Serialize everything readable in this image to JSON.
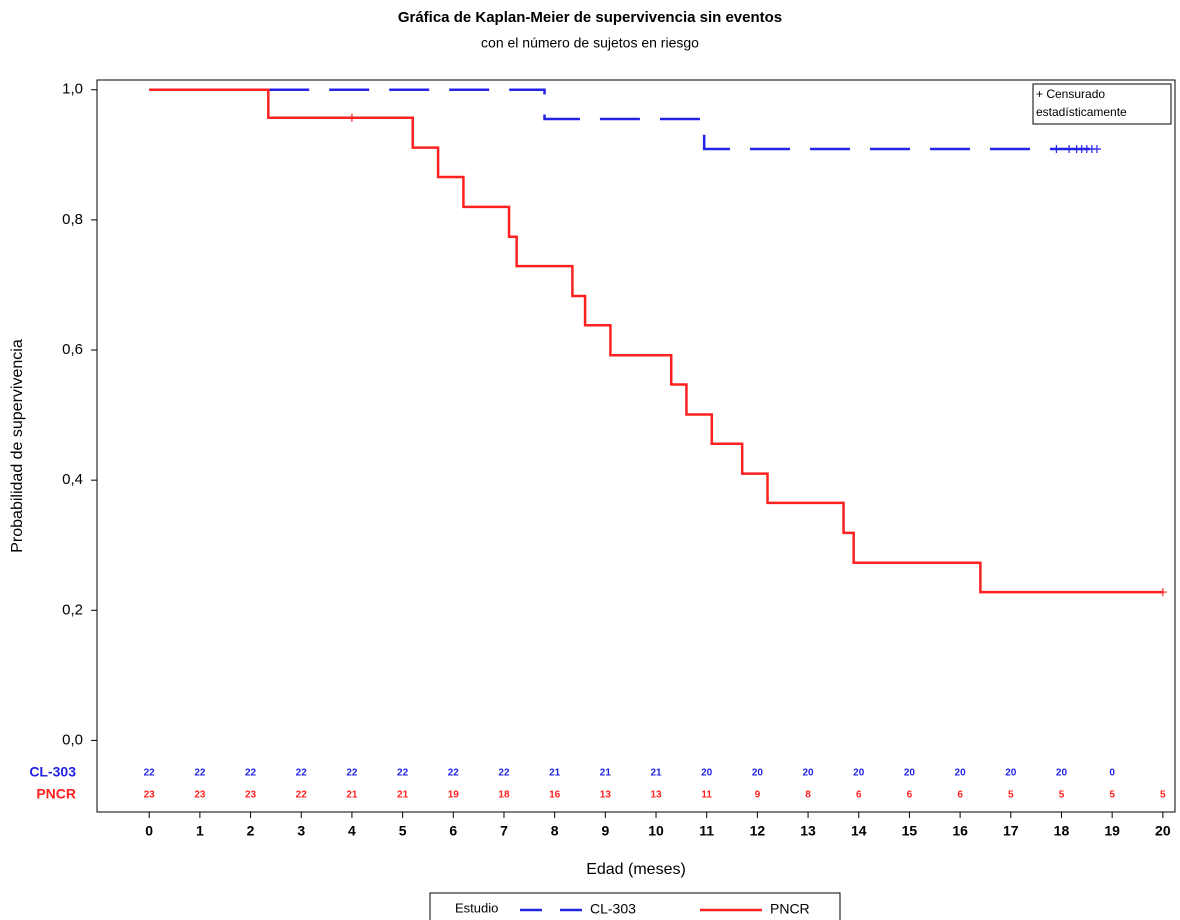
{
  "chart_data": {
    "type": "step",
    "title": "Gráfica de Kaplan-Meier de supervivencia sin eventos",
    "subtitle": "con el número de sujetos en riesgo",
    "x_label": "Edad (meses)",
    "y_label": "Probabilidad de supervivencia",
    "xlim": [
      -1.03,
      20.24
    ],
    "ylim": [
      -0.11,
      1.015
    ],
    "xticks": [
      0,
      1,
      2,
      3,
      4,
      5,
      6,
      7,
      8,
      9,
      10,
      11,
      12,
      13,
      14,
      15,
      16,
      17,
      18,
      19,
      20
    ],
    "yticks": [
      {
        "value": 0,
        "label": "0,0"
      },
      {
        "value": 0.2,
        "label": "0,2"
      },
      {
        "value": 0.4,
        "label": "0,4"
      },
      {
        "value": 0.6,
        "label": "0,6"
      },
      {
        "value": 0.8,
        "label": "0,8"
      },
      {
        "value": 1,
        "label": "1,0"
      }
    ],
    "legend_title": "Estudio",
    "censor_legend": [
      "+ Censurado",
      "estadísticamente"
    ],
    "series": [
      {
        "name": "CL-303",
        "color": "#2323e6",
        "dashed": true,
        "x": [
          0,
          7.8,
          10.95,
          18.7
        ],
        "values": [
          1.0,
          0.955,
          0.909,
          0.909
        ],
        "censored": {
          "x": [
            17.9,
            18.15,
            18.3,
            18.4,
            18.5,
            18.6,
            18.7
          ],
          "values": [
            0.909,
            0.909,
            0.909,
            0.909,
            0.909,
            0.909,
            0.909
          ]
        }
      },
      {
        "name": "PNCR",
        "color": "#ff2020",
        "dashed": false,
        "x": [
          0,
          2.35,
          5.2,
          5.7,
          6.2,
          7.1,
          7.25,
          8.35,
          8.6,
          9.1,
          10.3,
          10.6,
          11.1,
          11.7,
          12.2,
          13.7,
          13.9,
          16.4,
          20
        ],
        "values": [
          1.0,
          0.957,
          0.911,
          0.866,
          0.82,
          0.774,
          0.729,
          0.683,
          0.638,
          0.592,
          0.547,
          0.501,
          0.456,
          0.41,
          0.365,
          0.319,
          0.273,
          0.228,
          0.228
        ],
        "censored": {
          "x": [
            4.0,
            20
          ],
          "values": [
            0.957,
            0.228
          ]
        }
      }
    ],
    "risk_table": [
      {
        "name": "CL-303",
        "color": "#2323e6",
        "values": [
          22,
          22,
          22,
          22,
          22,
          22,
          22,
          22,
          21,
          21,
          21,
          20,
          20,
          20,
          20,
          20,
          20,
          20,
          20,
          0,
          null
        ]
      },
      {
        "name": "PNCR",
        "color": "#ff2020",
        "values": [
          23,
          23,
          23,
          22,
          21,
          21,
          19,
          18,
          16,
          13,
          13,
          11,
          9,
          8,
          6,
          6,
          6,
          5,
          5,
          5,
          5
        ]
      }
    ]
  }
}
